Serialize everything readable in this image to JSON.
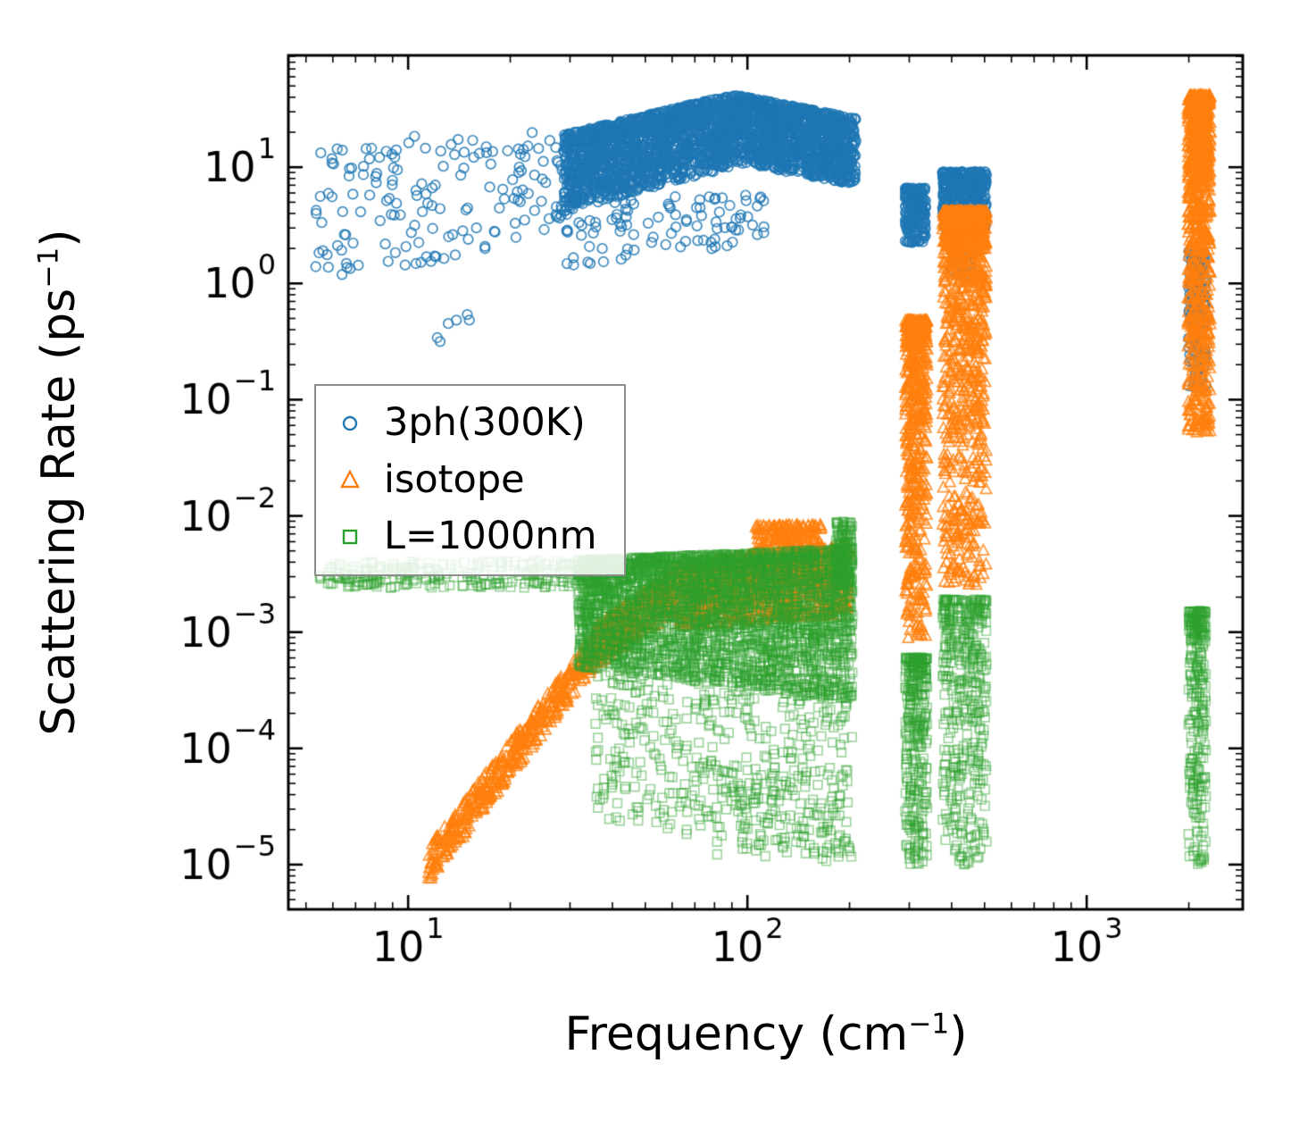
{
  "chart_data": {
    "type": "scatter",
    "title": "",
    "xlabel": {
      "main": "Frequency (cm",
      "sup": "−1",
      "close": ")"
    },
    "ylabel": {
      "main": "Scattering Rate (ps",
      "sup": "−1",
      "close": ")"
    },
    "x_scale": "log",
    "y_scale": "log",
    "xlim_log10": [
      0.647,
      3.46
    ],
    "ylim_log10": [
      -5.385,
      1.962
    ],
    "x_tick_exponents": [
      1,
      2,
      3
    ],
    "y_tick_exponents": [
      1,
      0,
      -1,
      -2,
      -3,
      -4,
      -5
    ],
    "grid": false,
    "legend_position": "upper-left-inside",
    "series": [
      {
        "name": "3ph(300K)",
        "marker": "circle",
        "color": "#1f77b4",
        "alpha": 0.85,
        "clusters": [
          {
            "n": 160,
            "x": [
              0.72,
              1.46
            ],
            "yl": [
              -0.05,
              1.25
            ],
            "yr": [
              0.45,
              1.32
            ],
            "bias": 1
          },
          {
            "n": 6,
            "x": [
              1.05,
              1.2
            ],
            "yl": [
              -0.5,
              -0.25
            ],
            "yr": [
              -0.5,
              -0.25
            ],
            "bias": 1
          },
          {
            "n": 1600,
            "x": [
              1.46,
              1.95
            ],
            "yl": [
              0.62,
              1.28
            ],
            "yr": [
              1.0,
              1.62
            ],
            "bias": 1.3
          },
          {
            "n": 1300,
            "x": [
              1.95,
              2.32
            ],
            "yl": [
              1.05,
              1.63
            ],
            "yr": [
              0.85,
              1.42
            ],
            "bias": 1.25
          },
          {
            "n": 100,
            "x": [
              1.45,
              2.05
            ],
            "yl": [
              0.15,
              0.7
            ],
            "yr": [
              0.3,
              0.8
            ],
            "bias": 1
          },
          {
            "n": 220,
            "x": [
              2.465,
              2.525
            ],
            "yl": [
              0.35,
              0.82
            ],
            "yr": [
              0.35,
              0.82
            ],
            "bias": 1.3
          },
          {
            "n": 420,
            "x": [
              2.575,
              2.705
            ],
            "yl": [
              0.42,
              0.96
            ],
            "yr": [
              0.42,
              0.96
            ],
            "bias": 1.5
          },
          {
            "n": 70,
            "x": [
              2.6,
              2.67
            ],
            "yl": [
              0.05,
              0.45
            ],
            "yr": [
              0.05,
              0.45
            ],
            "bias": 1
          },
          {
            "n": 160,
            "x": [
              3.3,
              3.352
            ],
            "yl": [
              -0.9,
              0.28
            ],
            "yr": [
              -0.9,
              0.28
            ],
            "bias": 1.3
          }
        ]
      },
      {
        "name": "isotope",
        "marker": "triangle",
        "color": "#ff7f0e",
        "alpha": 0.8,
        "clusters": [
          {
            "n": 450,
            "x": [
              1.06,
              1.55
            ],
            "yl": [
              -5.15,
              -4.85
            ],
            "yr": [
              -3.3,
              -3.0
            ],
            "bias": 1
          },
          {
            "n": 350,
            "x": [
              1.55,
              1.8
            ],
            "yl": [
              -3.3,
              -2.95
            ],
            "yr": [
              -2.8,
              -2.4
            ],
            "bias": 1
          },
          {
            "n": 900,
            "x": [
              1.8,
              2.3
            ],
            "yl": [
              -2.95,
              -2.4
            ],
            "yr": [
              -2.85,
              -2.25
            ],
            "bias": 1.2
          },
          {
            "n": 260,
            "x": [
              2.02,
              2.22
            ],
            "yl": [
              -2.55,
              -2.08
            ],
            "yr": [
              -2.55,
              -2.08
            ],
            "bias": 1.6
          },
          {
            "n": 550,
            "x": [
              2.465,
              2.53
            ],
            "yl": [
              -3.05,
              -0.32
            ],
            "yr": [
              -3.05,
              -0.32
            ],
            "bias": 2.2
          },
          {
            "n": 1000,
            "x": [
              2.575,
              2.705
            ],
            "yl": [
              -2.6,
              0.62
            ],
            "yr": [
              -2.6,
              0.62
            ],
            "bias": 2.4
          },
          {
            "n": 800,
            "x": [
              3.298,
              3.365
            ],
            "yl": [
              -1.28,
              1.62
            ],
            "yr": [
              -1.28,
              1.62
            ],
            "bias": 1.8
          }
        ]
      },
      {
        "name": "L=1000nm",
        "marker": "square",
        "color": "#2ca02c",
        "alpha": 0.45,
        "clusters": [
          {
            "n": 260,
            "x": [
              0.74,
              1.5
            ],
            "yl": [
              -2.62,
              -2.4
            ],
            "yr": [
              -2.62,
              -2.38
            ],
            "bias": 1
          },
          {
            "n": 3200,
            "x": [
              1.5,
              2.31
            ],
            "yl": [
              -3.3,
              -2.38
            ],
            "yr": [
              -3.6,
              -2.28
            ],
            "bias": 1.4
          },
          {
            "n": 450,
            "x": [
              1.55,
              2.31
            ],
            "yl": [
              -4.6,
              -3.3
            ],
            "yr": [
              -5.0,
              -3.5
            ],
            "bias": 1
          },
          {
            "n": 60,
            "x": [
              1.9,
              2.3
            ],
            "yl": [
              -5.0,
              -4.2
            ],
            "yr": [
              -5.0,
              -4.2
            ],
            "bias": 1
          },
          {
            "n": 120,
            "x": [
              2.26,
              2.31
            ],
            "yl": [
              -2.6,
              -2.05
            ],
            "yr": [
              -2.6,
              -2.05
            ],
            "bias": 1.3
          },
          {
            "n": 320,
            "x": [
              2.465,
              2.53
            ],
            "yl": [
              -5.0,
              -3.22
            ],
            "yr": [
              -5.0,
              -3.22
            ],
            "bias": 1.8
          },
          {
            "n": 420,
            "x": [
              2.575,
              2.705
            ],
            "yl": [
              -5.0,
              -2.72
            ],
            "yr": [
              -5.0,
              -2.72
            ],
            "bias": 1.8
          },
          {
            "n": 280,
            "x": [
              3.3,
              3.352
            ],
            "yl": [
              -5.0,
              -2.82
            ],
            "yr": [
              -5.0,
              -2.82
            ],
            "bias": 1.8
          }
        ]
      }
    ]
  }
}
